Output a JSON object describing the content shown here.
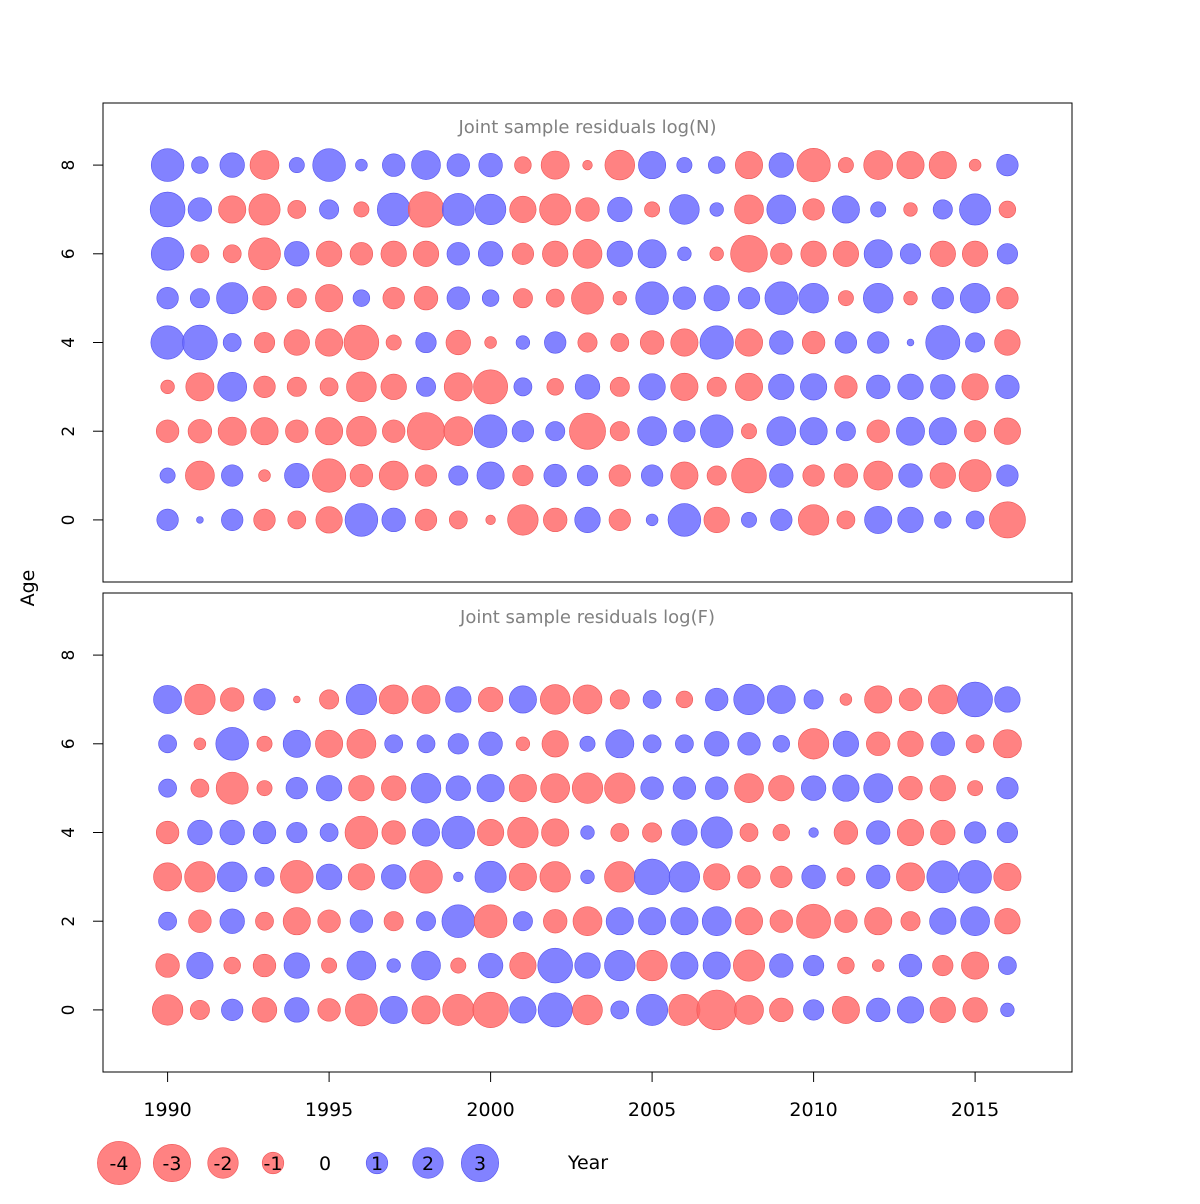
{
  "chart_data": {
    "type": "scatter",
    "subtype": "bubble",
    "xlabel": "Year",
    "ylabel": "Age",
    "x_ticks": [
      1990,
      1995,
      2000,
      2005,
      2010,
      2015
    ],
    "y_ticks": [
      0,
      2,
      4,
      6,
      8
    ],
    "xlim": [
      1988,
      2018
    ],
    "ylim": [
      -1.4,
      9.4
    ],
    "colors": {
      "negative": "#ff6666",
      "positive": "#6666ff",
      "panel_title": "#808080"
    },
    "legend": {
      "values": [
        -4,
        -3,
        -2,
        -1,
        0,
        1,
        2,
        3
      ],
      "labels": [
        "-4",
        "-3",
        "-2",
        "-1",
        "0",
        "1",
        "2",
        "3"
      ]
    },
    "years": [
      1990,
      1991,
      1992,
      1993,
      1994,
      1995,
      1996,
      1997,
      1998,
      1999,
      2000,
      2001,
      2002,
      2003,
      2004,
      2005,
      2006,
      2007,
      2008,
      2009,
      2010,
      2011,
      2012,
      2013,
      2014,
      2015,
      2016
    ],
    "panels": [
      {
        "title": "Joint sample residuals log(N)",
        "ages": [
          0,
          1,
          2,
          3,
          4,
          5,
          6,
          7,
          8
        ],
        "residuals": [
          [
            1,
            0.1,
            1,
            -1,
            -0.7,
            -1.5,
            2.3,
            1.2,
            -1,
            -0.7,
            -0.2,
            -2,
            -1.2,
            1.4,
            -1,
            0.3,
            2.3,
            -1.4,
            0.5,
            1,
            -2,
            -0.7,
            1.6,
            1.4,
            0.6,
            0.7,
            -2.8
          ],
          [
            0.5,
            -1.8,
            1,
            -0.3,
            1.3,
            -2.4,
            -1.1,
            -1.8,
            -1,
            0.8,
            1.6,
            -0.9,
            1.1,
            0.9,
            -1,
            1,
            -1.6,
            -0.8,
            -2.6,
            1.2,
            -1,
            -1.2,
            -1.8,
            1.2,
            -1.4,
            -2.2,
            1
          ],
          [
            -1.1,
            -1.2,
            -1.7,
            -1.6,
            -1.1,
            -1.6,
            -1.9,
            -1.1,
            -3,
            -1.8,
            2.3,
            1,
            0.8,
            -2.8,
            -0.8,
            1.8,
            1,
            2.3,
            -0.5,
            1.8,
            1.6,
            0.8,
            -1.1,
            1.7,
            1.6,
            -1,
            -1.5
          ],
          [
            -0.4,
            -1.7,
            1.8,
            -1,
            -0.8,
            -0.7,
            -1.9,
            -1.4,
            0.8,
            -1.7,
            -2.5,
            0.7,
            -0.6,
            1.3,
            -0.8,
            1.5,
            -1.6,
            -0.8,
            -1.6,
            1.4,
            1.5,
            -1.1,
            1.2,
            1.4,
            1.3,
            -1.5,
            1.2
          ],
          [
            2.4,
            2.6,
            0.7,
            -0.9,
            -1.4,
            -1.6,
            -2.6,
            -0.5,
            0.9,
            -1.3,
            -0.3,
            0.4,
            1,
            -0.8,
            -0.7,
            -1.2,
            -1.6,
            2.4,
            -1.6,
            1.2,
            -1.1,
            1,
            1,
            0.1,
            2.5,
            0.8,
            -1.4
          ],
          [
            1,
            0.8,
            2.1,
            -1.2,
            -0.8,
            -1.6,
            0.6,
            -1,
            -1.2,
            1.1,
            0.6,
            -0.8,
            -0.7,
            -2.2,
            -0.4,
            2.3,
            1.1,
            1.4,
            1,
            2.3,
            1.9,
            -0.5,
            1.9,
            -0.4,
            1,
            1.9,
            -1
          ],
          [
            2.3,
            -0.7,
            -0.7,
            -2.2,
            1.3,
            -1.4,
            -1.1,
            -1.4,
            -1.4,
            1.1,
            1.3,
            -1,
            -1.4,
            -1.8,
            1.4,
            1.7,
            0.4,
            -0.4,
            -2.9,
            -1,
            -1.4,
            -1.4,
            1.7,
            0.9,
            -1.4,
            -1.4,
            0.9
          ],
          [
            2.6,
            1.2,
            -1.6,
            -2.1,
            -0.7,
            0.8,
            -0.5,
            2.3,
            -2.7,
            2.2,
            2,
            -1.5,
            -2.1,
            -1.2,
            1.3,
            -0.5,
            1.9,
            0.4,
            -1.8,
            1.8,
            -1,
            1.6,
            0.5,
            -0.4,
            0.8,
            2.1,
            -0.6
          ],
          [
            2.3,
            0.6,
            1.3,
            -1.8,
            0.5,
            2.3,
            0.3,
            1.1,
            1.8,
            1.1,
            1.2,
            -0.6,
            -1.7,
            -0.2,
            -1.9,
            1.6,
            0.5,
            0.6,
            -1.6,
            1.3,
            -2.4,
            -0.5,
            -1.8,
            -1.6,
            -1.6,
            -0.3,
            1
          ]
        ]
      },
      {
        "title": "Joint sample residuals log(F)",
        "ages": [
          0,
          1,
          2,
          3,
          4,
          5,
          6,
          7
        ],
        "residuals": [
          [
            -2,
            -0.8,
            1,
            -1.3,
            1.3,
            -1.1,
            -2.2,
            1.6,
            -1.7,
            -2.1,
            -2.7,
            1.5,
            2.5,
            -1.9,
            0.7,
            2.1,
            -2.1,
            -3.4,
            -1.8,
            -1.2,
            0.9,
            -1.6,
            1.2,
            1.5,
            -1.4,
            -1.3,
            0.4
          ],
          [
            -1.2,
            1.5,
            -0.6,
            -1.1,
            1.4,
            -0.5,
            1.8,
            0.4,
            1.8,
            -0.5,
            1.3,
            -1.5,
            2.6,
            1.4,
            2,
            -2,
            1.6,
            1.6,
            -2.1,
            1.2,
            0.9,
            -0.6,
            -0.3,
            1.1,
            -0.9,
            -1.6,
            0.7
          ],
          [
            0.7,
            -1.1,
            1.3,
            -0.7,
            -1.6,
            -1.1,
            1.1,
            -0.8,
            0.8,
            2.3,
            -2.3,
            0.8,
            -1.2,
            -1.8,
            1.6,
            1.6,
            1.6,
            1.8,
            -1.6,
            -1.1,
            -2.5,
            -1.1,
            -1.6,
            -0.8,
            1.5,
            1.8,
            -1.4
          ],
          [
            -1.7,
            -2,
            1.9,
            0.8,
            -2.3,
            1.4,
            -1.5,
            1.3,
            -2.3,
            0.2,
            2.1,
            -1.6,
            -2,
            0.4,
            -2,
            2.7,
            2,
            -1.5,
            -1.1,
            -1,
            1.2,
            -0.7,
            1.2,
            -1.7,
            2.2,
            2.3,
            -1.6
          ],
          [
            -1.1,
            1.3,
            1.3,
            1.1,
            0.9,
            0.7,
            -2.3,
            -1.2,
            1.6,
            2.3,
            -1.5,
            -2,
            -1.6,
            0.4,
            -0.7,
            -0.8,
            1.4,
            2.1,
            -0.7,
            -0.6,
            0.2,
            -1.2,
            1.2,
            -1.5,
            -1.3,
            1,
            0.9
          ],
          [
            0.7,
            -0.7,
            -2.2,
            -0.5,
            1,
            1.4,
            -1.4,
            -1.3,
            1.9,
            1.3,
            1.6,
            -1.6,
            -1.8,
            -2,
            -2,
            1.1,
            1.1,
            1.1,
            -1.8,
            -1.4,
            1.3,
            1.5,
            1.8,
            -1.2,
            -1.4,
            -0.5,
            1
          ],
          [
            0.7,
            -0.3,
            2.3,
            -0.5,
            1.6,
            -1.6,
            -1.8,
            0.7,
            0.7,
            0.9,
            1.2,
            -0.4,
            -1.5,
            0.5,
            1.7,
            0.7,
            0.7,
            1.3,
            1.1,
            0.6,
            -2,
            1.4,
            -1.2,
            -1.4,
            1.2,
            -0.7,
            -1.7
          ],
          [
            1.7,
            -2,
            -1.2,
            1,
            -0.1,
            -0.8,
            2,
            -1.8,
            -1.7,
            1.4,
            -1.3,
            1.6,
            -1.9,
            -1.8,
            -0.8,
            0.7,
            -0.6,
            1.1,
            2,
            1.7,
            0.8,
            -0.3,
            -1.6,
            -1.1,
            -1.8,
            2.6,
            1.4
          ]
        ]
      }
    ]
  }
}
